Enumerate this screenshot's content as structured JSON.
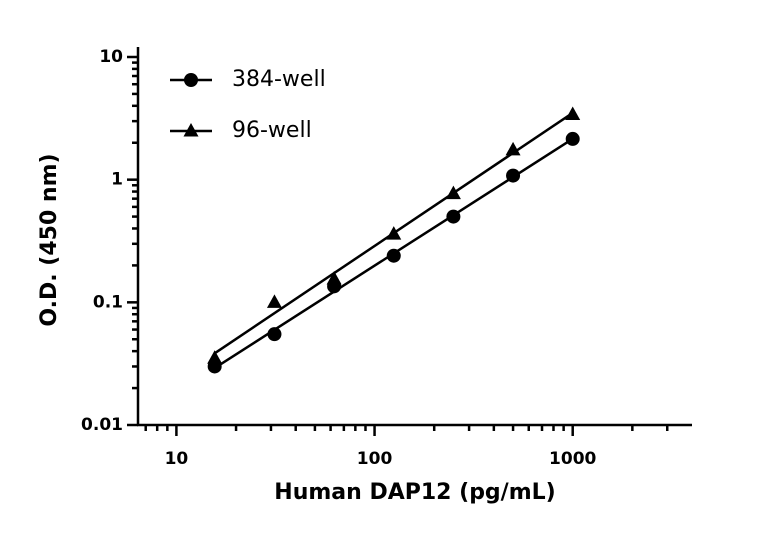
{
  "chart_data": {
    "type": "scatter",
    "x_label": "Human DAP12 (pg/mL)",
    "y_label": "O.D. (450 nm)",
    "x": [
      15.6,
      31.25,
      62.5,
      125,
      250,
      500,
      1000
    ],
    "series": [
      {
        "name": "384-well",
        "color": "#000000",
        "marker": "circle",
        "values": [
          0.03,
          0.055,
          0.135,
          0.24,
          0.5,
          1.08,
          2.15
        ]
      },
      {
        "name": "96-well",
        "color": "#000000",
        "marker": "triangle",
        "values": [
          0.035,
          0.1,
          0.155,
          0.36,
          0.77,
          1.75,
          3.4
        ]
      }
    ],
    "xlim": [
      6.4,
      4000
    ],
    "ylim": [
      0.01,
      10
    ],
    "xticks": [
      10,
      100,
      1000
    ],
    "yticks": [
      0.01,
      0.1,
      1,
      10
    ],
    "xscale": "log",
    "yscale": "log",
    "fit_line": true,
    "legend": "upper left"
  }
}
